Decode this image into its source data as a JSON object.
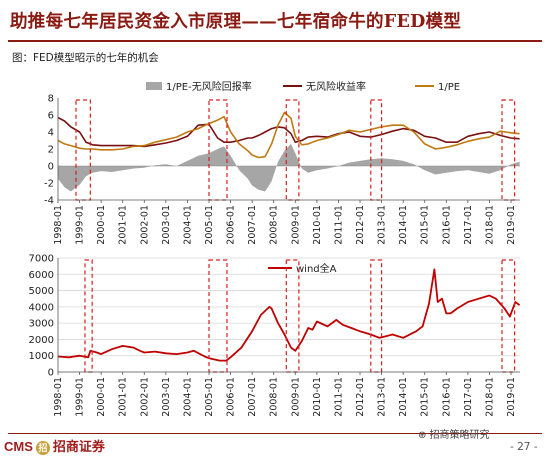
{
  "header": {
    "title": "助推每七年居民资金入市原理——七年宿命牛的FED模型",
    "caption": "图：FED模型昭示的七年的机会"
  },
  "footer": {
    "logo_text": "CMS",
    "logo_mark": "招",
    "company": "招商证券",
    "wechat": "招商策略研究",
    "page": "- 27 -"
  },
  "colors": {
    "spread_area": "#a6a6a6",
    "risk_free": "#7a1010",
    "pe_inverse": "#c07a12",
    "wind_a": "#c00000",
    "highlight_box": "#d62020",
    "brand": "#8a1a12"
  },
  "chart_data": [
    {
      "type": "line",
      "title": "",
      "legend_position": "top",
      "ylim": [
        -4,
        8
      ],
      "yticks": [
        -4,
        -2,
        0,
        2,
        4,
        6,
        8
      ],
      "grid": false,
      "x_range": [
        "1998-01",
        "2019-06"
      ],
      "xticks": [
        "1998-01",
        "1999-01",
        "2000-01",
        "2001-01",
        "2002-01",
        "2003-01",
        "2004-01",
        "2005-01",
        "2006-01",
        "2007-01",
        "2008-01",
        "2009-01",
        "2010-01",
        "2011-01",
        "2012-01",
        "2013-01",
        "2014-01",
        "2015-01",
        "2016-01",
        "2017-01",
        "2018-01",
        "2019-01"
      ],
      "series": [
        {
          "name": "1/PE-无风险回报率",
          "kind": "area",
          "x": [
            1998.0,
            1998.3,
            1998.6,
            1999.0,
            1999.3,
            1999.6,
            2000.0,
            2000.5,
            2001.0,
            2001.5,
            2002.0,
            2002.5,
            2003.0,
            2003.5,
            2004.0,
            2004.5,
            2005.0,
            2005.4,
            2005.7,
            2006.0,
            2006.4,
            2006.8,
            2007.0,
            2007.3,
            2007.6,
            2007.9,
            2008.2,
            2008.5,
            2008.8,
            2009.0,
            2009.3,
            2009.6,
            2010.0,
            2010.5,
            2011.0,
            2011.5,
            2012.0,
            2012.5,
            2013.0,
            2013.5,
            2014.0,
            2014.5,
            2015.0,
            2015.5,
            2016.0,
            2016.5,
            2017.0,
            2017.5,
            2018.0,
            2018.5,
            2019.0,
            2019.4
          ],
          "values": [
            -1.5,
            -2.5,
            -3.0,
            -2.2,
            -1.2,
            -0.8,
            -0.6,
            -0.7,
            -0.5,
            -0.3,
            -0.2,
            0.1,
            0.2,
            0.0,
            0.6,
            1.2,
            1.5,
            2.0,
            2.3,
            1.2,
            -0.5,
            -1.5,
            -2.3,
            -2.8,
            -3.0,
            -1.8,
            0.5,
            1.8,
            2.6,
            1.5,
            -0.3,
            -0.8,
            -0.5,
            -0.3,
            0.0,
            0.4,
            0.6,
            0.8,
            0.9,
            0.8,
            0.6,
            0.2,
            -0.5,
            -1.0,
            -0.8,
            -0.6,
            -0.5,
            -0.7,
            -0.9,
            -0.5,
            0.2,
            0.5
          ]
        },
        {
          "name": "无风险收益率",
          "kind": "line",
          "x": [
            1998.0,
            1998.3,
            1998.6,
            1999.0,
            1999.3,
            1999.6,
            2000.0,
            2000.5,
            2001.0,
            2001.5,
            2002.0,
            2002.5,
            2003.0,
            2003.5,
            2004.0,
            2004.5,
            2005.0,
            2005.4,
            2005.7,
            2006.0,
            2006.4,
            2006.8,
            2007.0,
            2007.3,
            2007.6,
            2007.9,
            2008.2,
            2008.5,
            2008.8,
            2009.0,
            2009.3,
            2009.6,
            2010.0,
            2010.5,
            2011.0,
            2011.5,
            2012.0,
            2012.5,
            2013.0,
            2013.5,
            2014.0,
            2014.5,
            2015.0,
            2015.5,
            2016.0,
            2016.5,
            2017.0,
            2017.5,
            2018.0,
            2018.5,
            2019.0,
            2019.4
          ],
          "values": [
            5.7,
            5.3,
            4.6,
            4.0,
            2.8,
            2.5,
            2.4,
            2.4,
            2.4,
            2.4,
            2.3,
            2.5,
            2.7,
            3.0,
            3.5,
            4.8,
            4.9,
            3.3,
            2.8,
            2.8,
            3.0,
            3.3,
            3.3,
            3.6,
            4.0,
            4.4,
            4.6,
            4.5,
            3.8,
            2.8,
            3.0,
            3.4,
            3.5,
            3.4,
            3.8,
            4.0,
            3.5,
            3.4,
            3.7,
            4.1,
            4.4,
            4.2,
            3.5,
            3.3,
            2.8,
            2.8,
            3.5,
            3.8,
            4.0,
            3.6,
            3.3,
            3.2
          ]
        },
        {
          "name": "1/PE",
          "kind": "line",
          "x": [
            1998.0,
            1998.3,
            1998.6,
            1999.0,
            1999.3,
            1999.6,
            2000.0,
            2000.5,
            2001.0,
            2001.5,
            2002.0,
            2002.5,
            2003.0,
            2003.5,
            2004.0,
            2004.5,
            2005.0,
            2005.4,
            2005.7,
            2006.0,
            2006.4,
            2006.8,
            2007.0,
            2007.3,
            2007.6,
            2007.9,
            2008.2,
            2008.5,
            2008.8,
            2009.0,
            2009.3,
            2009.6,
            2010.0,
            2010.5,
            2011.0,
            2011.5,
            2012.0,
            2012.5,
            2013.0,
            2013.5,
            2014.0,
            2014.5,
            2015.0,
            2015.5,
            2016.0,
            2016.5,
            2017.0,
            2017.5,
            2018.0,
            2018.5,
            2019.0,
            2019.4
          ],
          "values": [
            3.0,
            2.6,
            2.4,
            2.1,
            2.0,
            2.0,
            1.9,
            1.9,
            2.0,
            2.3,
            2.4,
            2.8,
            3.1,
            3.4,
            4.0,
            4.4,
            5.0,
            5.4,
            5.8,
            4.0,
            2.6,
            1.8,
            1.3,
            1.0,
            1.1,
            2.6,
            4.8,
            6.3,
            5.6,
            3.5,
            2.5,
            2.6,
            3.0,
            3.3,
            3.7,
            4.2,
            4.0,
            4.3,
            4.6,
            4.8,
            4.8,
            4.0,
            2.6,
            2.0,
            2.2,
            2.5,
            2.9,
            3.2,
            3.4,
            4.1,
            3.9,
            3.8
          ]
        }
      ],
      "highlight_periods": [
        [
          "1998-11",
          "1999-07"
        ],
        [
          "2005-01",
          "2005-11"
        ],
        [
          "2008-08",
          "2009-03"
        ],
        [
          "2012-07",
          "2013-01"
        ],
        [
          "2018-08",
          "2019-03"
        ]
      ]
    },
    {
      "type": "line",
      "title": "",
      "legend_position": "top-center",
      "ylim": [
        0,
        7000
      ],
      "yticks": [
        0,
        1000,
        2000,
        3000,
        4000,
        5000,
        6000,
        7000
      ],
      "grid": true,
      "x_range": [
        "1998-01",
        "2019-06"
      ],
      "xticks": [
        "1998-01",
        "1999-01",
        "2000-01",
        "2001-01",
        "2002-01",
        "2003-01",
        "2004-01",
        "2005-01",
        "2006-01",
        "2007-01",
        "2008-01",
        "2009-01",
        "2010-01",
        "2011-01",
        "2012-01",
        "2013-01",
        "2014-01",
        "2015-01",
        "2016-01",
        "2017-01",
        "2018-01",
        "2019-01"
      ],
      "series": [
        {
          "name": "wind全A",
          "x": [
            1998.0,
            1998.5,
            1999.0,
            1999.4,
            1999.5,
            1999.8,
            2000.0,
            2000.5,
            2001.0,
            2001.5,
            2001.8,
            2002.0,
            2002.5,
            2003.0,
            2003.5,
            2004.0,
            2004.3,
            2004.8,
            2005.0,
            2005.5,
            2005.8,
            2006.0,
            2006.5,
            2007.0,
            2007.4,
            2007.8,
            2007.9,
            2008.2,
            2008.5,
            2008.8,
            2009.0,
            2009.3,
            2009.6,
            2009.8,
            2010.0,
            2010.5,
            2010.9,
            2011.2,
            2011.6,
            2012.0,
            2012.5,
            2012.9,
            2013.2,
            2013.5,
            2014.0,
            2014.6,
            2014.9,
            2015.2,
            2015.45,
            2015.6,
            2015.8,
            2016.0,
            2016.2,
            2016.5,
            2017.0,
            2017.5,
            2018.0,
            2018.3,
            2018.7,
            2018.95,
            2019.2,
            2019.4
          ],
          "values": [
            950,
            900,
            1000,
            900,
            1300,
            1200,
            1100,
            1400,
            1600,
            1500,
            1300,
            1200,
            1250,
            1150,
            1100,
            1200,
            1300,
            950,
            850,
            700,
            700,
            900,
            1500,
            2500,
            3500,
            4000,
            3900,
            3000,
            2300,
            1500,
            1300,
            1900,
            2700,
            2600,
            3100,
            2800,
            3200,
            2900,
            2700,
            2500,
            2300,
            2100,
            2200,
            2300,
            2100,
            2500,
            2800,
            4200,
            6300,
            4300,
            4500,
            3600,
            3600,
            3900,
            4300,
            4500,
            4700,
            4500,
            3900,
            3400,
            4300,
            4100
          ]
        }
      ],
      "highlight_periods": [
        [
          "1999-04",
          "1999-08"
        ],
        [
          "2005-01",
          "2005-11"
        ],
        [
          "2008-08",
          "2009-03"
        ],
        [
          "2012-07",
          "2013-01"
        ],
        [
          "2018-08",
          "2019-03"
        ]
      ]
    }
  ]
}
